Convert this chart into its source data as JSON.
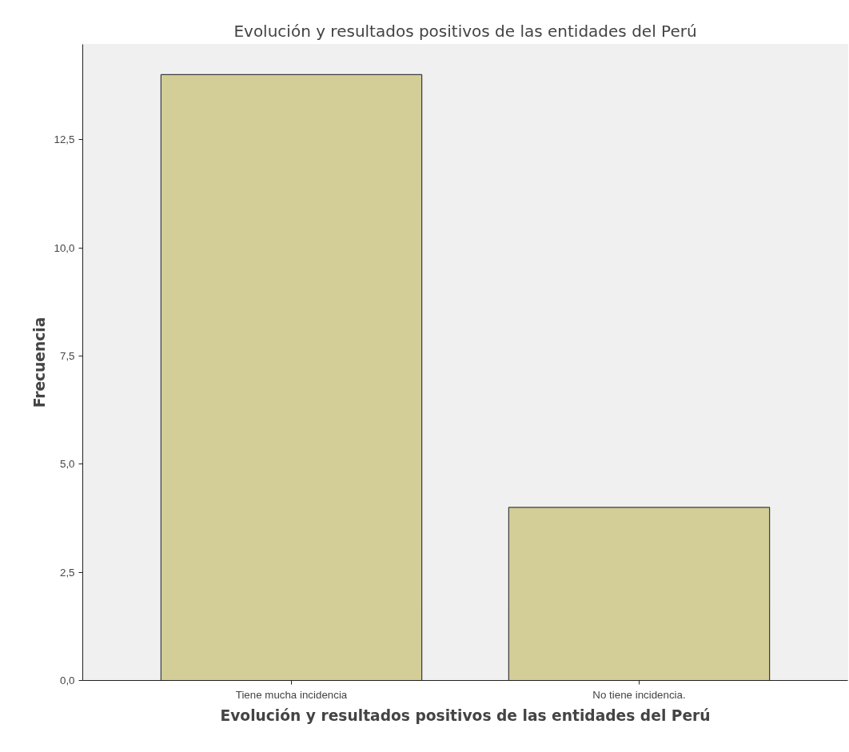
{
  "chart_data": {
    "type": "bar",
    "title": "Evolución y resultados positivos de las entidades del Perú",
    "xlabel": "Evolución y resultados positivos de las entidades del Perú",
    "ylabel": "Frecuencia",
    "categories": [
      "Tiene mucha incidencia",
      "No tiene incidencia."
    ],
    "values": [
      14,
      4
    ],
    "color": "#d3ce97",
    "ylim": [
      0,
      14.7
    ],
    "yticks": [
      {
        "value": 0,
        "label": "0,0"
      },
      {
        "value": 2.5,
        "label": "2,5"
      },
      {
        "value": 5,
        "label": "5,0"
      },
      {
        "value": 7.5,
        "label": "7,5"
      },
      {
        "value": 10,
        "label": "10,0"
      },
      {
        "value": 12.5,
        "label": "12,5"
      }
    ],
    "grid": false
  }
}
